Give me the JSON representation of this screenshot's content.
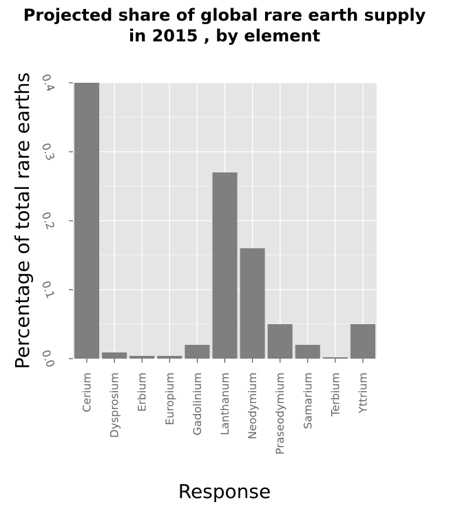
{
  "chart_data": {
    "type": "bar",
    "title": "Projected share of global rare earth supply in 2015 , by element",
    "title_lines": [
      "Projected share of global rare earth supply",
      "in 2015 , by element"
    ],
    "xlabel": "Response",
    "ylabel": "Percentage of total rare earths",
    "categories": [
      "Cerium",
      "Dysprosium",
      "Erbium",
      "Europium",
      "Gadolinium",
      "Lanthanum",
      "Neodymium",
      "Praseodymium",
      "Samarium",
      "Terbium",
      "Yttrium"
    ],
    "values": [
      0.4,
      0.009,
      0.004,
      0.004,
      0.02,
      0.27,
      0.16,
      0.05,
      0.02,
      0.002,
      0.05
    ],
    "ylim": [
      0,
      0.4
    ],
    "yticks": [
      "0.0",
      "0.1",
      "0.2",
      "0.3",
      "0.4"
    ],
    "grid": true,
    "colors": {
      "bar": "#7f7f7f",
      "panel": "#e5e5e5",
      "grid": "#ffffff",
      "tick_text": "#666666",
      "tick_mark": "#333333",
      "text": "#000000"
    }
  }
}
